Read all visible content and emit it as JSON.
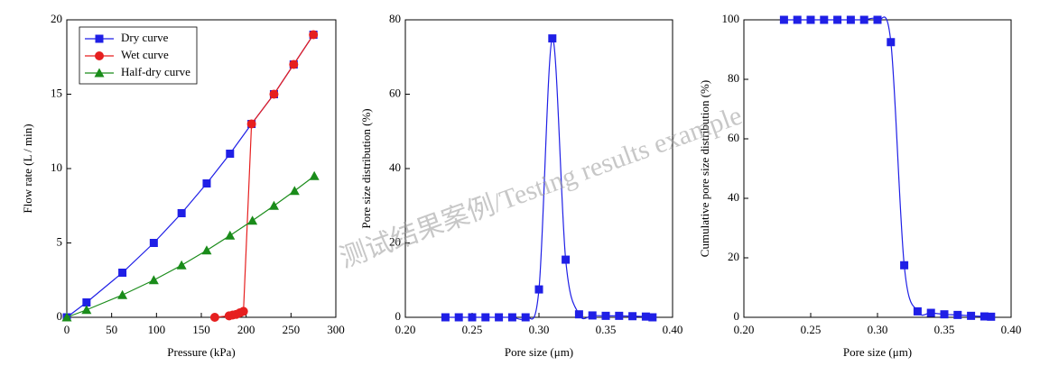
{
  "watermark": "测试结果案例/Testing results example",
  "chart_data": [
    {
      "type": "line",
      "xlabel": "Pressure (kPa)",
      "ylabel": "Flow rate (L / min)",
      "xlim": [
        0,
        300
      ],
      "xticks": [
        0,
        50,
        100,
        150,
        200,
        250,
        300
      ],
      "ylim": [
        0,
        20
      ],
      "yticks": [
        0,
        5,
        10,
        15,
        20
      ],
      "legend": "upper left",
      "smooth": false,
      "series": [
        {
          "name": "Dry curve",
          "color": "#1f1fe6",
          "marker": "square",
          "x": [
            0,
            22,
            62,
            97,
            128,
            156,
            182,
            206,
            231,
            253,
            275
          ],
          "values": [
            0,
            1,
            3,
            5,
            7,
            9,
            11,
            13,
            15,
            17,
            19
          ]
        },
        {
          "name": "Wet curve",
          "color": "#e61f1f",
          "marker": "circle",
          "x": [
            165,
            181,
            185,
            189,
            193,
            197,
            206,
            231,
            253,
            275
          ],
          "values": [
            0,
            0.1,
            0.15,
            0.2,
            0.3,
            0.4,
            13,
            15,
            17,
            19
          ]
        },
        {
          "name": "Half-dry curve",
          "color": "#1a8c1a",
          "marker": "triangle",
          "x": [
            0,
            22,
            62,
            97,
            128,
            156,
            182,
            207,
            231,
            254,
            276
          ],
          "values": [
            0,
            0.5,
            1.5,
            2.5,
            3.5,
            4.5,
            5.5,
            6.5,
            7.5,
            8.5,
            9.5
          ]
        }
      ]
    },
    {
      "type": "line",
      "xlabel": "Pore size (μm)",
      "ylabel": "Pore size distribution (%)",
      "xlim": [
        0.2,
        0.4
      ],
      "xticks": [
        {
          "value": 0.2,
          "label": "0.20"
        },
        0.25,
        {
          "value": 0.3,
          "label": "0.30"
        },
        0.35,
        {
          "value": 0.4,
          "label": "0.40"
        }
      ],
      "ylim": [
        0,
        80
      ],
      "yticks": [
        0,
        20,
        40,
        60,
        80
      ],
      "smooth": true,
      "series": [
        {
          "color": "#1f1fe6",
          "marker": "square",
          "x": [
            0.23,
            0.24,
            0.25,
            0.26,
            0.27,
            0.28,
            0.29,
            0.3,
            0.31,
            0.32,
            0.33,
            0.34,
            0.35,
            0.36,
            0.37,
            0.38,
            0.385
          ],
          "values": [
            0,
            0,
            0,
            0,
            0,
            0,
            0,
            7.5,
            75,
            15.5,
            0.8,
            0.5,
            0.4,
            0.4,
            0.3,
            0.2,
            0
          ]
        }
      ]
    },
    {
      "type": "line",
      "xlabel": "Pore size (μm)",
      "ylabel": "Cumulative pore size distribution (%)",
      "xlim": [
        0.2,
        0.4
      ],
      "xticks": [
        {
          "value": 0.2,
          "label": "0.20"
        },
        0.25,
        {
          "value": 0.3,
          "label": "0.30"
        },
        0.35,
        {
          "value": 0.4,
          "label": "0.40"
        }
      ],
      "ylim": [
        0,
        100
      ],
      "yticks": [
        0,
        20,
        40,
        60,
        80,
        100
      ],
      "smooth": true,
      "series": [
        {
          "color": "#1f1fe6",
          "marker": "square",
          "x": [
            0.23,
            0.24,
            0.25,
            0.26,
            0.27,
            0.28,
            0.29,
            0.3,
            0.31,
            0.32,
            0.33,
            0.34,
            0.35,
            0.36,
            0.37,
            0.38,
            0.385
          ],
          "values": [
            100,
            100,
            100,
            100,
            100,
            100,
            100,
            100,
            92.5,
            17.5,
            2,
            1.5,
            1,
            0.8,
            0.5,
            0.3,
            0.2
          ]
        }
      ]
    }
  ]
}
